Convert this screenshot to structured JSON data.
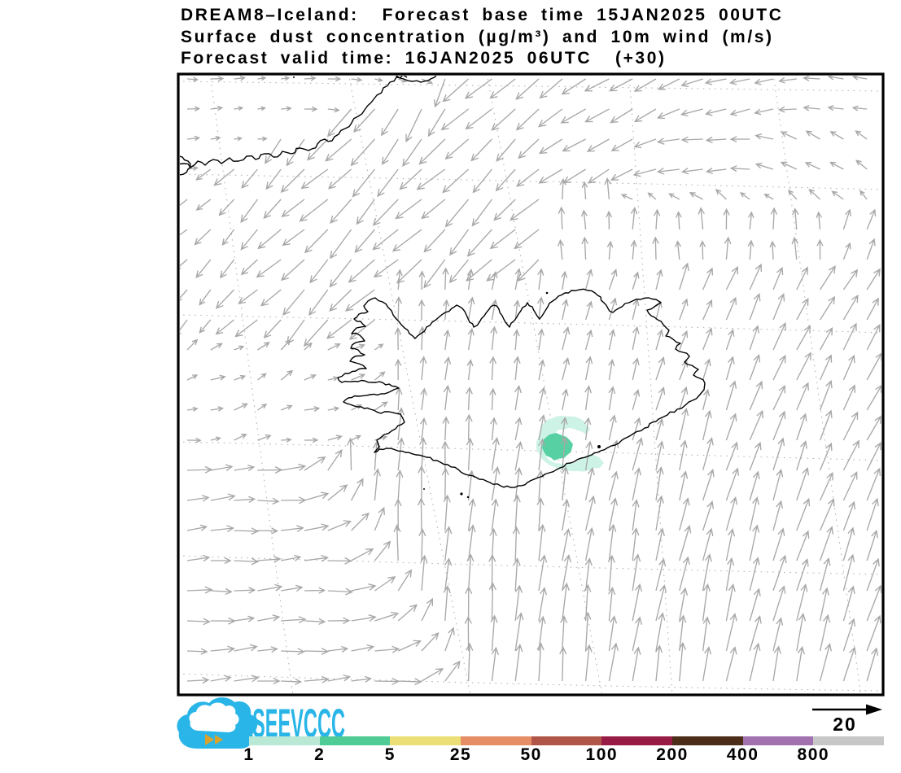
{
  "header": {
    "line1": "DREAM8–Iceland:  Forecast base time 15JAN2025 00UTC",
    "line2": "Surface dust concentration (µg/m³) and 10m wind (m/s)",
    "line3": "Forecast valid time: 16JAN2025 06UTC  (+30)"
  },
  "branding": {
    "logo_text": "SEEVCCC",
    "logo_color": "#29b5e8",
    "logo_arrow_color": "#d9a22c"
  },
  "wind_reference": {
    "label": "20"
  },
  "chart_data": {
    "type": "map",
    "model": "DREAM8-Iceland",
    "base_time": "15JAN2025 00UTC",
    "valid_time": "16JAN2025 06UTC",
    "forecast_step": "+30",
    "variables": [
      "Surface dust concentration (µg/m³)",
      "10m wind (m/s)"
    ],
    "region": "Iceland and surrounding North Atlantic / Greenland coast",
    "colorbar": {
      "units": "µg/m³",
      "tick_labels": [
        "1",
        "2",
        "5",
        "25",
        "50",
        "100",
        "200",
        "400",
        "800"
      ],
      "segment_colors": [
        "#b9e8d5",
        "#4fcb96",
        "#ecdf76",
        "#e68d66",
        "#b25549",
        "#981b45",
        "#4b2d18",
        "#a272b0",
        "#c7c7c7"
      ]
    },
    "wind": {
      "reference_speed_m_s": 20,
      "arrow_color": "#a8a8a8",
      "pattern": "northeasterly outflow from Greenland in the north-west, westward band in the north-east, strong southerly flow south and east of Iceland, easterlies in the south-west corner"
    },
    "dust_plume": {
      "visible_bands": [
        "1–2",
        "2–5"
      ],
      "band_colors": [
        "#cdf2e6",
        "#57d1a3"
      ],
      "location": "south coast of Iceland"
    },
    "coastlines": [
      "Iceland",
      "Greenland east coast"
    ],
    "grid": "dotted lat/lon graticule"
  }
}
